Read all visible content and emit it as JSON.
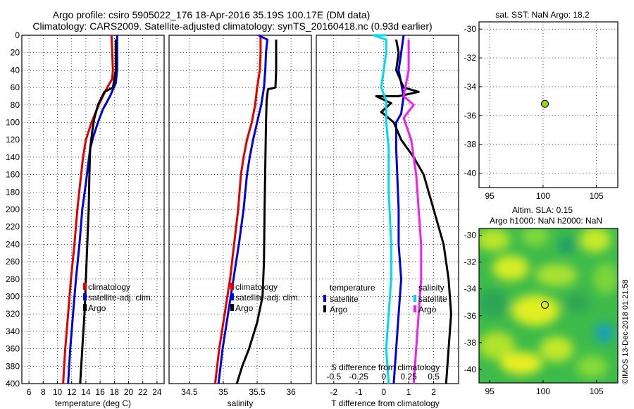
{
  "title": {
    "line1": "Argo profile: csiro 5905022_176 18-Apr-2016 35.19S 100.17E (DM data)",
    "line2": "Climatology: CARS2009. Satellite-adjusted climatology: synTS_20160418.nc (0.93d earlier)"
  },
  "watermark": "©IMOS 13-Dec-2018 01:21:58",
  "colors": {
    "climatology": "#e00000",
    "satellite": "#0000e0",
    "argo": "#000000",
    "salinity_sat": "#00d8f0",
    "salinity_argo": "#f020f0"
  },
  "chart_data": [
    {
      "type": "line",
      "id": "temperature",
      "xlabel": "temperature (deg C)",
      "ylabel": "",
      "xlim": [
        5,
        25
      ],
      "ylim": [
        400,
        0
      ],
      "x_ticks": [
        "6",
        "8",
        "10",
        "12",
        "14",
        "16",
        "18",
        "20",
        "22",
        "24"
      ],
      "y_ticks": [
        "0",
        "20",
        "40",
        "60",
        "80",
        "100",
        "120",
        "140",
        "160",
        "180",
        "200",
        "220",
        "240",
        "260",
        "280",
        "300",
        "320",
        "340",
        "360",
        "380",
        "400"
      ],
      "legend": [
        "climatology",
        "satellite-adj. clim.",
        "Argo"
      ],
      "series": [
        {
          "name": "climatology",
          "points": [
            [
              17.6,
              0
            ],
            [
              17.7,
              20
            ],
            [
              17.8,
              40
            ],
            [
              17.7,
              50
            ],
            [
              17.0,
              60
            ],
            [
              15.8,
              80
            ],
            [
              14.8,
              100
            ],
            [
              14.0,
              120
            ],
            [
              13.6,
              140
            ],
            [
              13.2,
              170
            ],
            [
              12.8,
              200
            ],
            [
              12.4,
              240
            ],
            [
              11.9,
              280
            ],
            [
              11.5,
              320
            ],
            [
              11.1,
              360
            ],
            [
              10.8,
              400
            ]
          ]
        },
        {
          "name": "satellite-adj. clim.",
          "points": [
            [
              18.4,
              0
            ],
            [
              18.4,
              20
            ],
            [
              18.4,
              40
            ],
            [
              18.2,
              55
            ],
            [
              17.4,
              70
            ],
            [
              16.4,
              85
            ],
            [
              15.7,
              100
            ],
            [
              15.1,
              115
            ],
            [
              14.6,
              130
            ],
            [
              14.3,
              150
            ],
            [
              14.0,
              170
            ],
            [
              13.5,
              200
            ],
            [
              13.1,
              240
            ],
            [
              12.6,
              280
            ],
            [
              12.2,
              320
            ],
            [
              11.8,
              360
            ],
            [
              11.5,
              400
            ]
          ]
        },
        {
          "name": "Argo",
          "points": [
            [
              18.2,
              5
            ],
            [
              18.2,
              20
            ],
            [
              18.2,
              40
            ],
            [
              17.8,
              60
            ],
            [
              16.6,
              65
            ],
            [
              15.7,
              80
            ],
            [
              15.2,
              95
            ],
            [
              14.9,
              110
            ],
            [
              14.6,
              130
            ],
            [
              14.5,
              160
            ],
            [
              14.4,
              200
            ],
            [
              14.2,
              240
            ],
            [
              14.0,
              280
            ],
            [
              13.8,
              320
            ],
            [
              13.5,
              360
            ],
            [
              13.2,
              400
            ]
          ]
        }
      ]
    },
    {
      "type": "line",
      "id": "salinity",
      "xlabel": "salinity",
      "ylabel": "",
      "xlim": [
        34.2,
        36.3
      ],
      "ylim": [
        400,
        0
      ],
      "x_ticks": [
        "34.5",
        "35",
        "35.5",
        "36"
      ],
      "legend": [
        "climatology",
        "satellite-adj. clim.",
        "Argo"
      ],
      "series": [
        {
          "name": "climatology",
          "points": [
            [
              35.55,
              0
            ],
            [
              35.55,
              20
            ],
            [
              35.54,
              40
            ],
            [
              35.5,
              60
            ],
            [
              35.47,
              80
            ],
            [
              35.42,
              100
            ],
            [
              35.35,
              120
            ],
            [
              35.3,
              140
            ],
            [
              35.26,
              160
            ],
            [
              35.22,
              200
            ],
            [
              35.16,
              240
            ],
            [
              35.1,
              280
            ],
            [
              35.02,
              320
            ],
            [
              34.94,
              360
            ],
            [
              34.88,
              400
            ]
          ]
        },
        {
          "name": "satellite-adj. clim.",
          "points": [
            [
              35.52,
              0
            ],
            [
              35.65,
              5
            ],
            [
              35.63,
              20
            ],
            [
              35.62,
              40
            ],
            [
              35.6,
              60
            ],
            [
              35.56,
              80
            ],
            [
              35.5,
              100
            ],
            [
              35.44,
              120
            ],
            [
              35.39,
              140
            ],
            [
              35.35,
              160
            ],
            [
              35.3,
              200
            ],
            [
              35.23,
              240
            ],
            [
              35.15,
              280
            ],
            [
              35.07,
              320
            ],
            [
              34.99,
              360
            ],
            [
              34.93,
              400
            ]
          ]
        },
        {
          "name": "Argo",
          "points": [
            [
              35.78,
              5
            ],
            [
              35.78,
              40
            ],
            [
              35.77,
              60
            ],
            [
              35.66,
              62
            ],
            [
              35.64,
              75
            ],
            [
              35.63,
              100
            ],
            [
              35.62,
              150
            ],
            [
              35.61,
              200
            ],
            [
              35.6,
              260
            ],
            [
              35.58,
              300
            ],
            [
              35.5,
              330
            ],
            [
              35.38,
              360
            ],
            [
              35.28,
              380
            ],
            [
              35.2,
              400
            ]
          ]
        }
      ]
    },
    {
      "type": "line",
      "id": "difference",
      "xlabel": "T difference from climatology",
      "xlabel_top": "S difference from climatology",
      "ylabel": "",
      "xlim": [
        -2.7,
        3.0
      ],
      "ylim": [
        400,
        0
      ],
      "x_ticks_bottom": [
        "-2",
        "-1",
        "0",
        "1",
        "2"
      ],
      "x_ticks_top": [
        "-0.5",
        "-0.25",
        "0",
        "0.25",
        "0.5"
      ],
      "legend_temperature_title": "temperature",
      "legend_salinity_title": "salinity",
      "legend_temperature": [
        "satellite",
        "Argo"
      ],
      "legend_salinity": [
        "satellite",
        "Argo"
      ],
      "series": [
        {
          "name": "T satellite",
          "points": [
            [
              0.8,
              0
            ],
            [
              0.7,
              20
            ],
            [
              0.6,
              40
            ],
            [
              0.7,
              55
            ],
            [
              0.8,
              70
            ],
            [
              0.7,
              90
            ],
            [
              0.5,
              100
            ],
            [
              0.5,
              130
            ],
            [
              0.6,
              200
            ],
            [
              0.6,
              240
            ],
            [
              0.7,
              280
            ],
            [
              0.6,
              320
            ],
            [
              0.5,
              360
            ],
            [
              0.4,
              400
            ]
          ]
        },
        {
          "name": "T Argo",
          "points": [
            [
              0.5,
              5
            ],
            [
              0.6,
              20
            ],
            [
              0.5,
              40
            ],
            [
              0.8,
              60
            ],
            [
              1.4,
              65
            ],
            [
              0.6,
              70
            ],
            [
              -0.3,
              70
            ],
            [
              0.3,
              78
            ],
            [
              -0.1,
              88
            ],
            [
              0.4,
              100
            ],
            [
              0.7,
              120
            ],
            [
              1.2,
              140
            ],
            [
              1.6,
              160
            ],
            [
              2.0,
              200
            ],
            [
              2.4,
              240
            ],
            [
              2.6,
              280
            ],
            [
              2.7,
              320
            ],
            [
              2.6,
              360
            ],
            [
              2.5,
              400
            ]
          ]
        },
        {
          "name": "S satellite",
          "points": [
            [
              0.1,
              0
            ],
            [
              -0.4,
              0
            ],
            [
              0.1,
              5
            ],
            [
              0.1,
              20
            ],
            [
              0.0,
              40
            ],
            [
              -0.1,
              60
            ],
            [
              0.1,
              75
            ],
            [
              0.1,
              100
            ],
            [
              0.2,
              130
            ],
            [
              0.2,
              180
            ],
            [
              0.3,
              240
            ],
            [
              0.3,
              280
            ],
            [
              0.2,
              320
            ],
            [
              0.1,
              360
            ],
            [
              0.2,
              400
            ]
          ]
        },
        {
          "name": "S Argo",
          "points": [
            [
              1.0,
              5
            ],
            [
              1.0,
              20
            ],
            [
              1.0,
              40
            ],
            [
              0.9,
              55
            ],
            [
              0.8,
              70
            ],
            [
              1.2,
              80
            ],
            [
              0.8,
              95
            ],
            [
              1.1,
              120
            ],
            [
              1.3,
              160
            ],
            [
              1.4,
              200
            ],
            [
              1.5,
              240
            ],
            [
              1.5,
              280
            ],
            [
              1.4,
              320
            ],
            [
              1.3,
              360
            ],
            [
              1.2,
              400
            ]
          ]
        }
      ]
    },
    {
      "type": "scatter",
      "id": "sst_map",
      "title": "sat. SST: NaN Argo: 18.2",
      "xlim": [
        94,
        107
      ],
      "ylim": [
        -41,
        -29.5
      ],
      "x_ticks": [
        "95",
        "100",
        "105"
      ],
      "y_ticks": [
        "-30",
        "-32",
        "-34",
        "-36",
        "-38",
        "-40"
      ],
      "points": [
        {
          "x": 100.17,
          "y": -35.19,
          "label": "Argo float"
        }
      ]
    },
    {
      "type": "heatmap",
      "id": "sla_map",
      "title_line1": "Altim. SLA: 0.15",
      "title_line2": "Argo h1000: NaN h2000: NaN",
      "xlim": [
        94,
        107
      ],
      "ylim": [
        -41,
        -29.5
      ],
      "x_ticks": [
        "95",
        "100",
        "105"
      ],
      "y_ticks": [
        "-30",
        "-32",
        "-34",
        "-36",
        "-38",
        "-40"
      ],
      "points": [
        {
          "x": 100.17,
          "y": -35.19,
          "label": "Argo float"
        }
      ]
    }
  ]
}
